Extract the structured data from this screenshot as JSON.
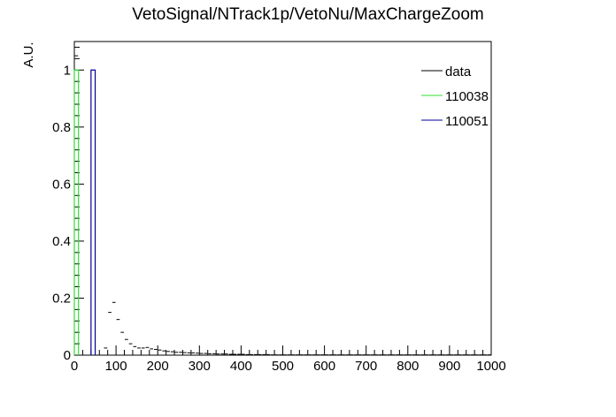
{
  "chart_data": {
    "type": "histogram",
    "title": "VetoSignal/NTrack1p/VetoNu/MaxChargeZoom",
    "xlabel": "",
    "ylabel": "A.U.",
    "xlim": [
      0,
      1000
    ],
    "ylim": [
      0,
      1.1
    ],
    "x_ticks": [
      0,
      100,
      200,
      300,
      400,
      500,
      600,
      700,
      800,
      900,
      1000
    ],
    "y_ticks": [
      0,
      0.2,
      0.4,
      0.6,
      0.8,
      1
    ],
    "x_tick_labels": [
      "0",
      "100",
      "200",
      "300",
      "400",
      "500",
      "600",
      "700",
      "800",
      "900",
      "1000"
    ],
    "y_tick_labels": [
      "0",
      "0.2",
      "0.4",
      "0.6",
      "0.8",
      "1"
    ],
    "grid": false,
    "legend_position": "top-right",
    "bin_width": 10,
    "series": [
      {
        "name": "data",
        "color": "#000000",
        "style": "markers",
        "x": [
          5,
          15,
          25,
          35,
          45,
          55,
          65,
          75,
          85,
          95,
          105,
          115,
          125,
          135,
          145,
          155,
          165,
          175,
          185,
          195,
          205,
          215,
          225,
          235,
          245,
          255,
          265,
          275,
          285,
          295,
          305,
          315,
          325,
          335,
          345,
          355,
          365,
          375,
          385,
          395,
          405,
          415,
          425,
          435,
          445,
          455,
          465,
          475,
          485,
          495,
          505,
          515,
          525,
          535,
          545,
          555,
          565,
          575,
          585,
          595,
          605,
          615,
          625,
          635,
          645,
          655,
          665,
          675,
          685,
          695,
          705,
          715,
          725,
          735,
          745,
          755,
          765,
          775,
          785,
          795,
          805,
          815,
          825,
          835,
          845,
          855,
          865,
          875,
          885,
          895,
          905,
          915,
          925,
          935,
          945,
          955,
          965,
          975,
          985,
          995
        ],
        "y": [
          1.05,
          0,
          0,
          0,
          0,
          0,
          0,
          0.025,
          0.15,
          0.185,
          0.125,
          0.08,
          0.055,
          0.04,
          0.03,
          0.025,
          0.025,
          0.027,
          0.022,
          0.02,
          0.018,
          0.015,
          0.013,
          0.012,
          0.01,
          0.01,
          0.009,
          0.008,
          0.008,
          0.007,
          0.006,
          0.006,
          0.005,
          0.005,
          0.004,
          0.004,
          0.004,
          0.003,
          0.003,
          0.003,
          0.003,
          0.002,
          0.002,
          0.002,
          0.002,
          0.002,
          0.002,
          0.001,
          0.001,
          0.001,
          0.001,
          0.001,
          0.001,
          0.001,
          0.001,
          0.001,
          0.001,
          0.001,
          0.001,
          0.001,
          0.001,
          0.001,
          0.001,
          0.001,
          0.001,
          0.001,
          0.001,
          0.001,
          0.001,
          0.001,
          0.001,
          0.001,
          0.001,
          0.001,
          0.001,
          0.001,
          0.001,
          0.001,
          0.001,
          0.001,
          0.001,
          0.001,
          0.001,
          0.001,
          0.001,
          0.001,
          0.001,
          0.001,
          0.001,
          0.001,
          0.001,
          0.001,
          0.001,
          0.001,
          0.001,
          0.001,
          0.001,
          0.001,
          0.001,
          0.001
        ]
      },
      {
        "name": "110038",
        "color": "#33dd33",
        "style": "step",
        "bins": [
          [
            0,
            10,
            1.0
          ]
        ]
      },
      {
        "name": "110051",
        "color": "#000099",
        "style": "step",
        "bins": [
          [
            40,
            50,
            1.0
          ]
        ]
      }
    ]
  }
}
